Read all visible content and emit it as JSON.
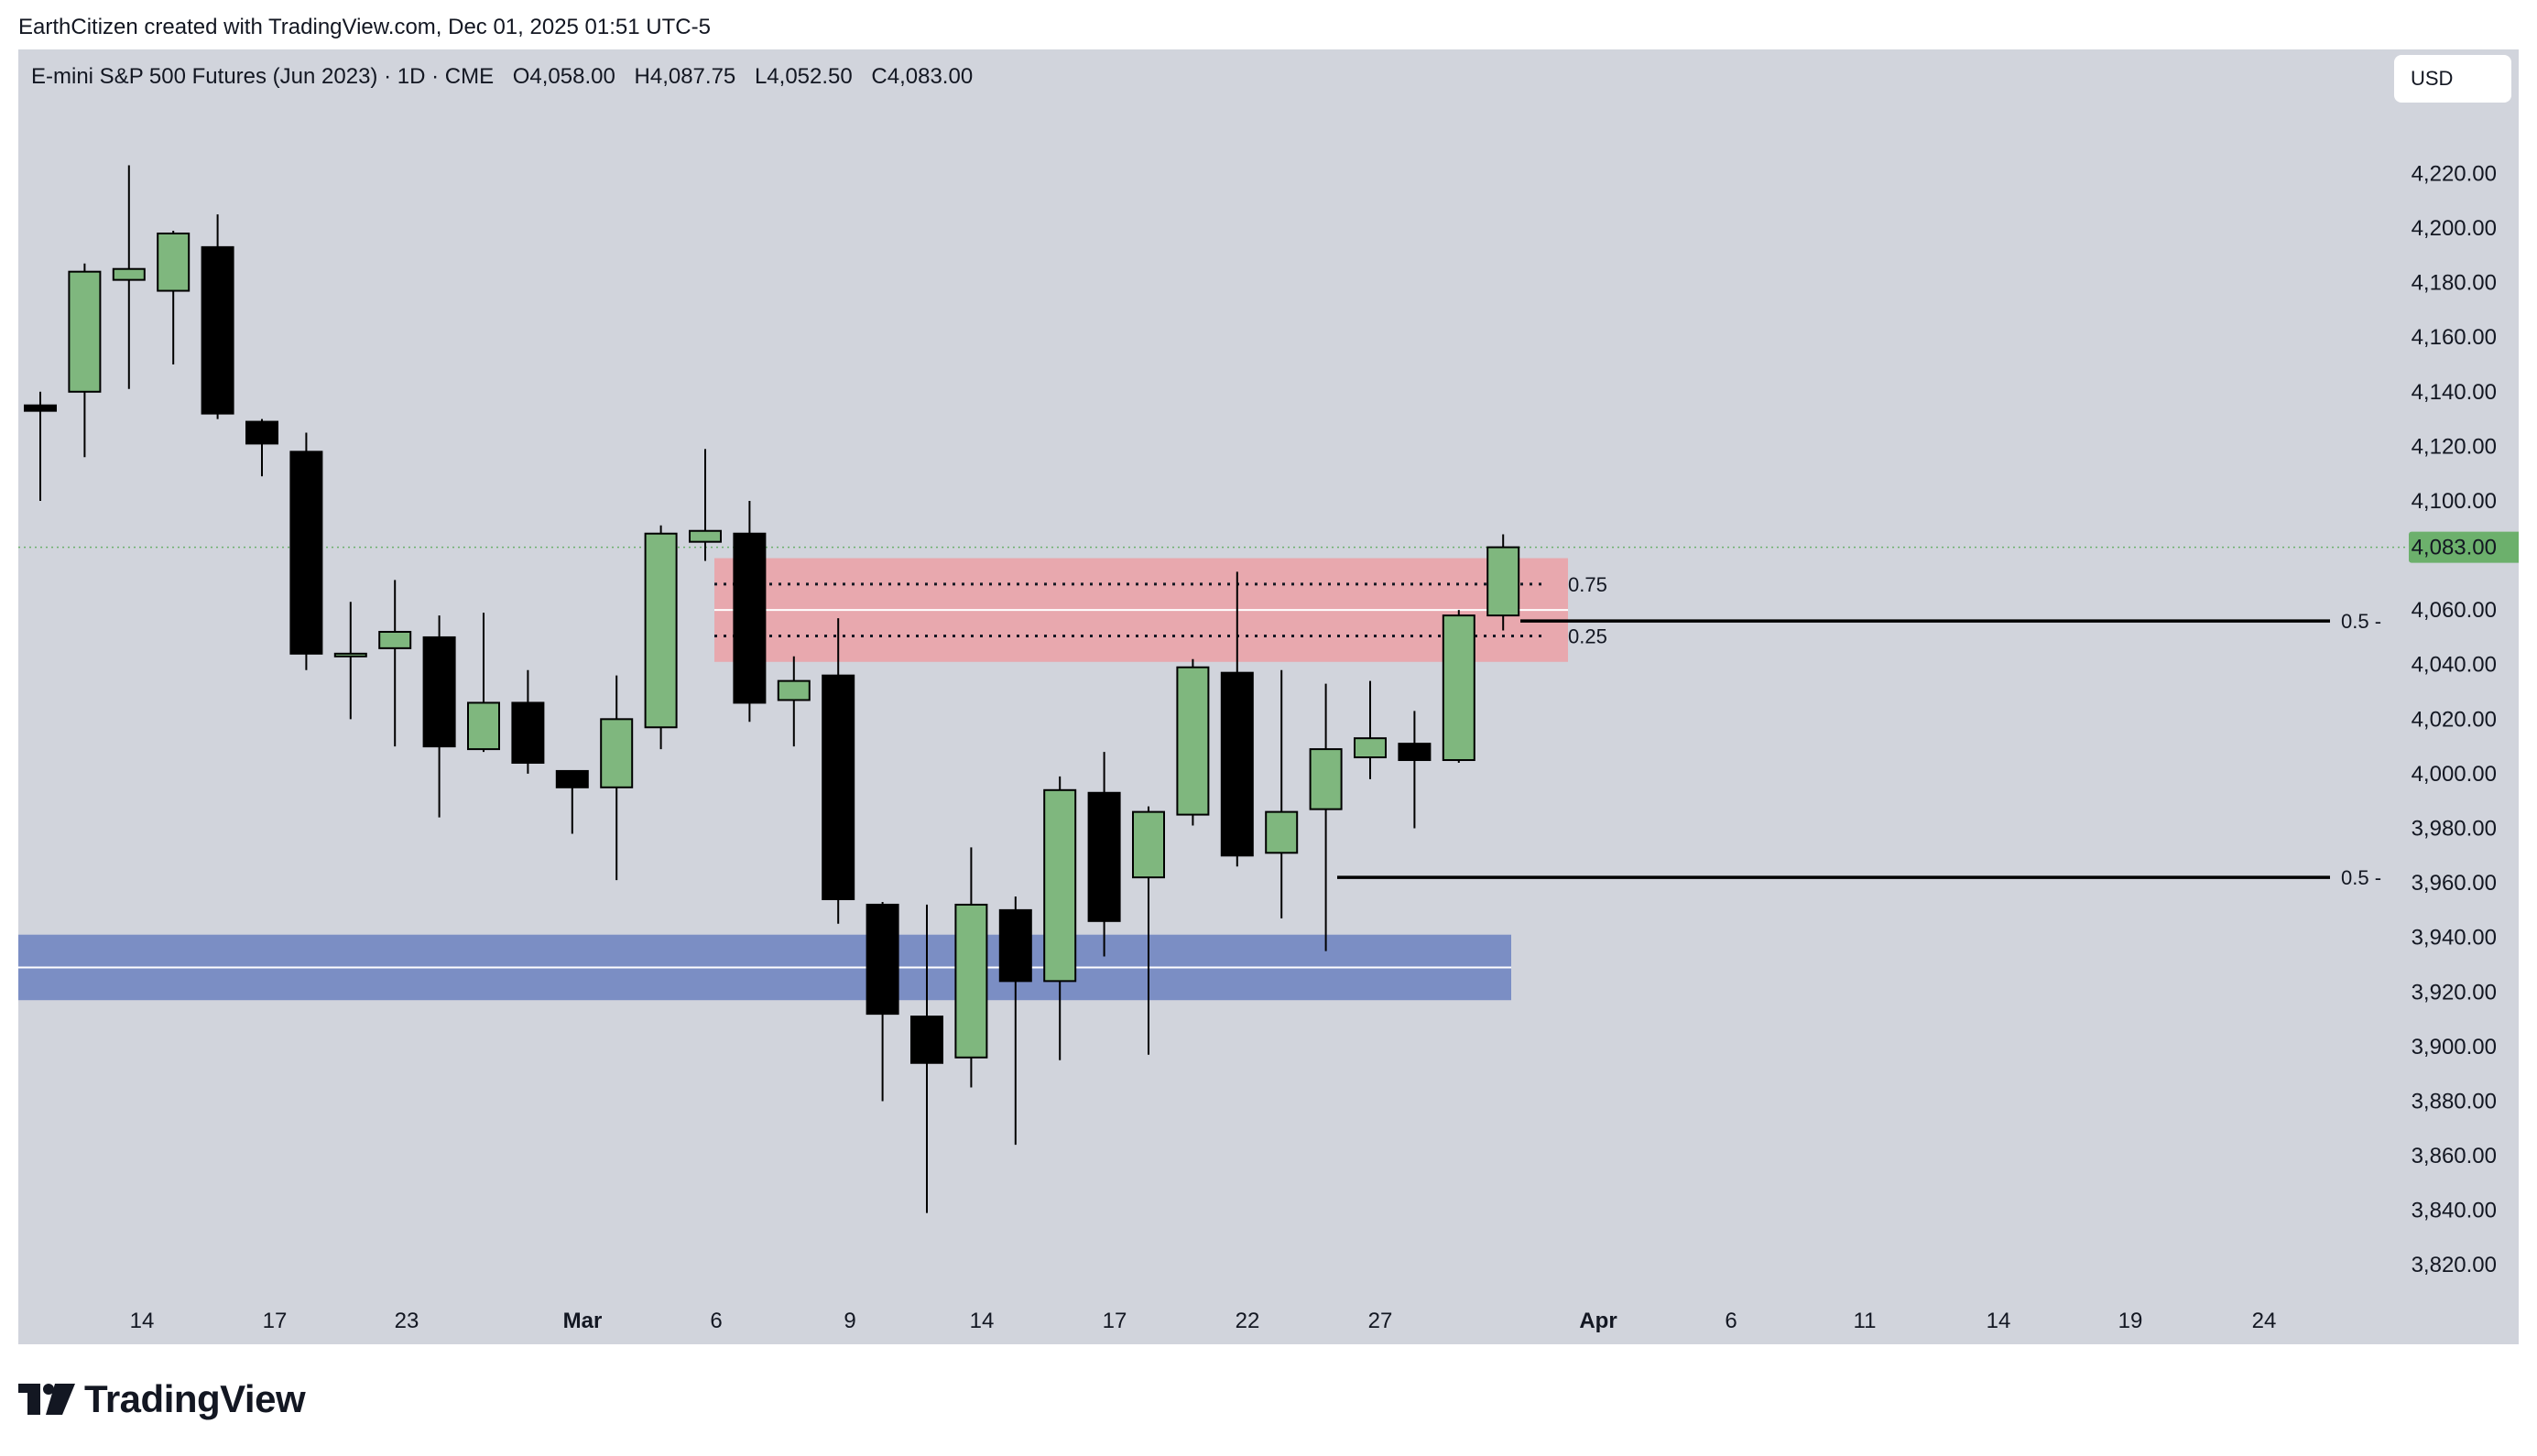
{
  "attribution": "EarthCitizen created with TradingView.com, Dec 01, 2025 01:51 UTC-5",
  "legend": {
    "symbol": "E-mini S&P 500 Futures (Jun 2023) · 1D · CME",
    "open": "O4,058.00",
    "high": "H4,087.75",
    "low": "L4,052.50",
    "close": "C4,083.00"
  },
  "currency_button": "USD",
  "logo_text": "TradingView",
  "colors": {
    "background": "#d1d4dc",
    "up": "#7fb77e",
    "down": "#000000",
    "supply_zone": "#e8a8ae",
    "demand_zone": "#7b8ec4",
    "last_price": "#6cb06c"
  },
  "chart_data": {
    "type": "candlestick",
    "x_tick_labels": [
      "14",
      "17",
      "23",
      "Mar",
      "6",
      "9",
      "14",
      "17",
      "22",
      "27",
      "Apr",
      "6",
      "11",
      "14",
      "19",
      "24"
    ],
    "y_tick_labels": [
      "3,820.00",
      "3,840.00",
      "3,860.00",
      "3,880.00",
      "3,900.00",
      "3,920.00",
      "3,940.00",
      "3,960.00",
      "3,980.00",
      "4,000.00",
      "4,020.00",
      "4,040.00",
      "4,060.00",
      "4,100.00",
      "4,120.00",
      "4,140.00",
      "4,160.00",
      "4,180.00",
      "4,200.00",
      "4,220.00"
    ],
    "ylim": [
      3809,
      4248
    ],
    "last_price": 4083,
    "last_price_label": "4,083.00",
    "candles": [
      {
        "o": 4135.0,
        "h": 4140.0,
        "l": 4100.0,
        "c": 4133.0
      },
      {
        "o": 4140.0,
        "h": 4187.0,
        "l": 4116.0,
        "c": 4184.0
      },
      {
        "o": 4181.0,
        "h": 4223.0,
        "l": 4141.0,
        "c": 4185.0
      },
      {
        "o": 4177.0,
        "h": 4199.0,
        "l": 4150.0,
        "c": 4198.0
      },
      {
        "o": 4193.0,
        "h": 4205.0,
        "l": 4130.0,
        "c": 4132.0
      },
      {
        "o": 4129.0,
        "h": 4130.0,
        "l": 4109.0,
        "c": 4121.0
      },
      {
        "o": 4118.0,
        "h": 4125.0,
        "l": 4038.0,
        "c": 4044.0
      },
      {
        "o": 4044.0,
        "h": 4063.0,
        "l": 4020.0,
        "c": 4044.0
      },
      {
        "o": 4046.0,
        "h": 4071.0,
        "l": 4010.0,
        "c": 4052.0
      },
      {
        "o": 4050.0,
        "h": 4058.0,
        "l": 3984.0,
        "c": 4010.0
      },
      {
        "o": 4009.0,
        "h": 4059.0,
        "l": 4008.0,
        "c": 4026.0
      },
      {
        "o": 4026.0,
        "h": 4038.0,
        "l": 4000.0,
        "c": 4004.0
      },
      {
        "o": 4001.0,
        "h": 4001.0,
        "l": 3978.0,
        "c": 3995.0
      },
      {
        "o": 3995.0,
        "h": 4036.0,
        "l": 3961.0,
        "c": 4020.0
      },
      {
        "o": 4017.0,
        "h": 4091.0,
        "l": 4009.0,
        "c": 4088.0
      },
      {
        "o": 4085.0,
        "h": 4119.0,
        "l": 4078.0,
        "c": 4089.0
      },
      {
        "o": 4088.0,
        "h": 4100.0,
        "l": 4019.0,
        "c": 4026.0
      },
      {
        "o": 4027.0,
        "h": 4043.0,
        "l": 4010.0,
        "c": 4034.0
      },
      {
        "o": 4036.0,
        "h": 4057.0,
        "l": 3945.0,
        "c": 3954.0
      },
      {
        "o": 3952.0,
        "h": 3953.0,
        "l": 3880.0,
        "c": 3912.0
      },
      {
        "o": 3911.0,
        "h": 3952.0,
        "l": 3839.0,
        "c": 3894.0
      },
      {
        "o": 3896.0,
        "h": 3973.0,
        "l": 3885.0,
        "c": 3952.0
      },
      {
        "o": 3950.0,
        "h": 3955.0,
        "l": 3864.0,
        "c": 3924.0
      },
      {
        "o": 3924.0,
        "h": 3999.0,
        "l": 3895.0,
        "c": 3994.0
      },
      {
        "o": 3993.0,
        "h": 4008.0,
        "l": 3933.0,
        "c": 3946.0
      },
      {
        "o": 3962.0,
        "h": 3988.0,
        "l": 3897.0,
        "c": 3986.0
      },
      {
        "o": 3985.0,
        "h": 4042.0,
        "l": 3981.0,
        "c": 4039.0
      },
      {
        "o": 4037.0,
        "h": 4074.0,
        "l": 3966.0,
        "c": 3970.0
      },
      {
        "o": 3971.0,
        "h": 4038.0,
        "l": 3947.0,
        "c": 3986.0
      },
      {
        "o": 3987.0,
        "h": 4033.0,
        "l": 3935.0,
        "c": 4009.0
      },
      {
        "o": 4006.0,
        "h": 4034.0,
        "l": 3998.0,
        "c": 4013.0
      },
      {
        "o": 4011.0,
        "h": 4023.0,
        "l": 3980.0,
        "c": 4005.0
      },
      {
        "o": 4005.0,
        "h": 4060.0,
        "l": 4004.0,
        "c": 4058.0
      },
      {
        "o": 4058.0,
        "h": 4087.75,
        "l": 4052.5,
        "c": 4083.0
      }
    ],
    "supply_zone": {
      "top": 4079,
      "bottom": 4041,
      "mid": 4060,
      "label_upper": "0.75",
      "label_lower": "0.25",
      "level_upper": 4069.5,
      "level_lower": 4050.5
    },
    "demand_zone": {
      "top": 3941,
      "bottom": 3917,
      "mid": 3929
    },
    "horizontal_lines": [
      {
        "price": 4056,
        "label": "0.5"
      },
      {
        "price": 3962,
        "label": "0.5"
      }
    ]
  }
}
